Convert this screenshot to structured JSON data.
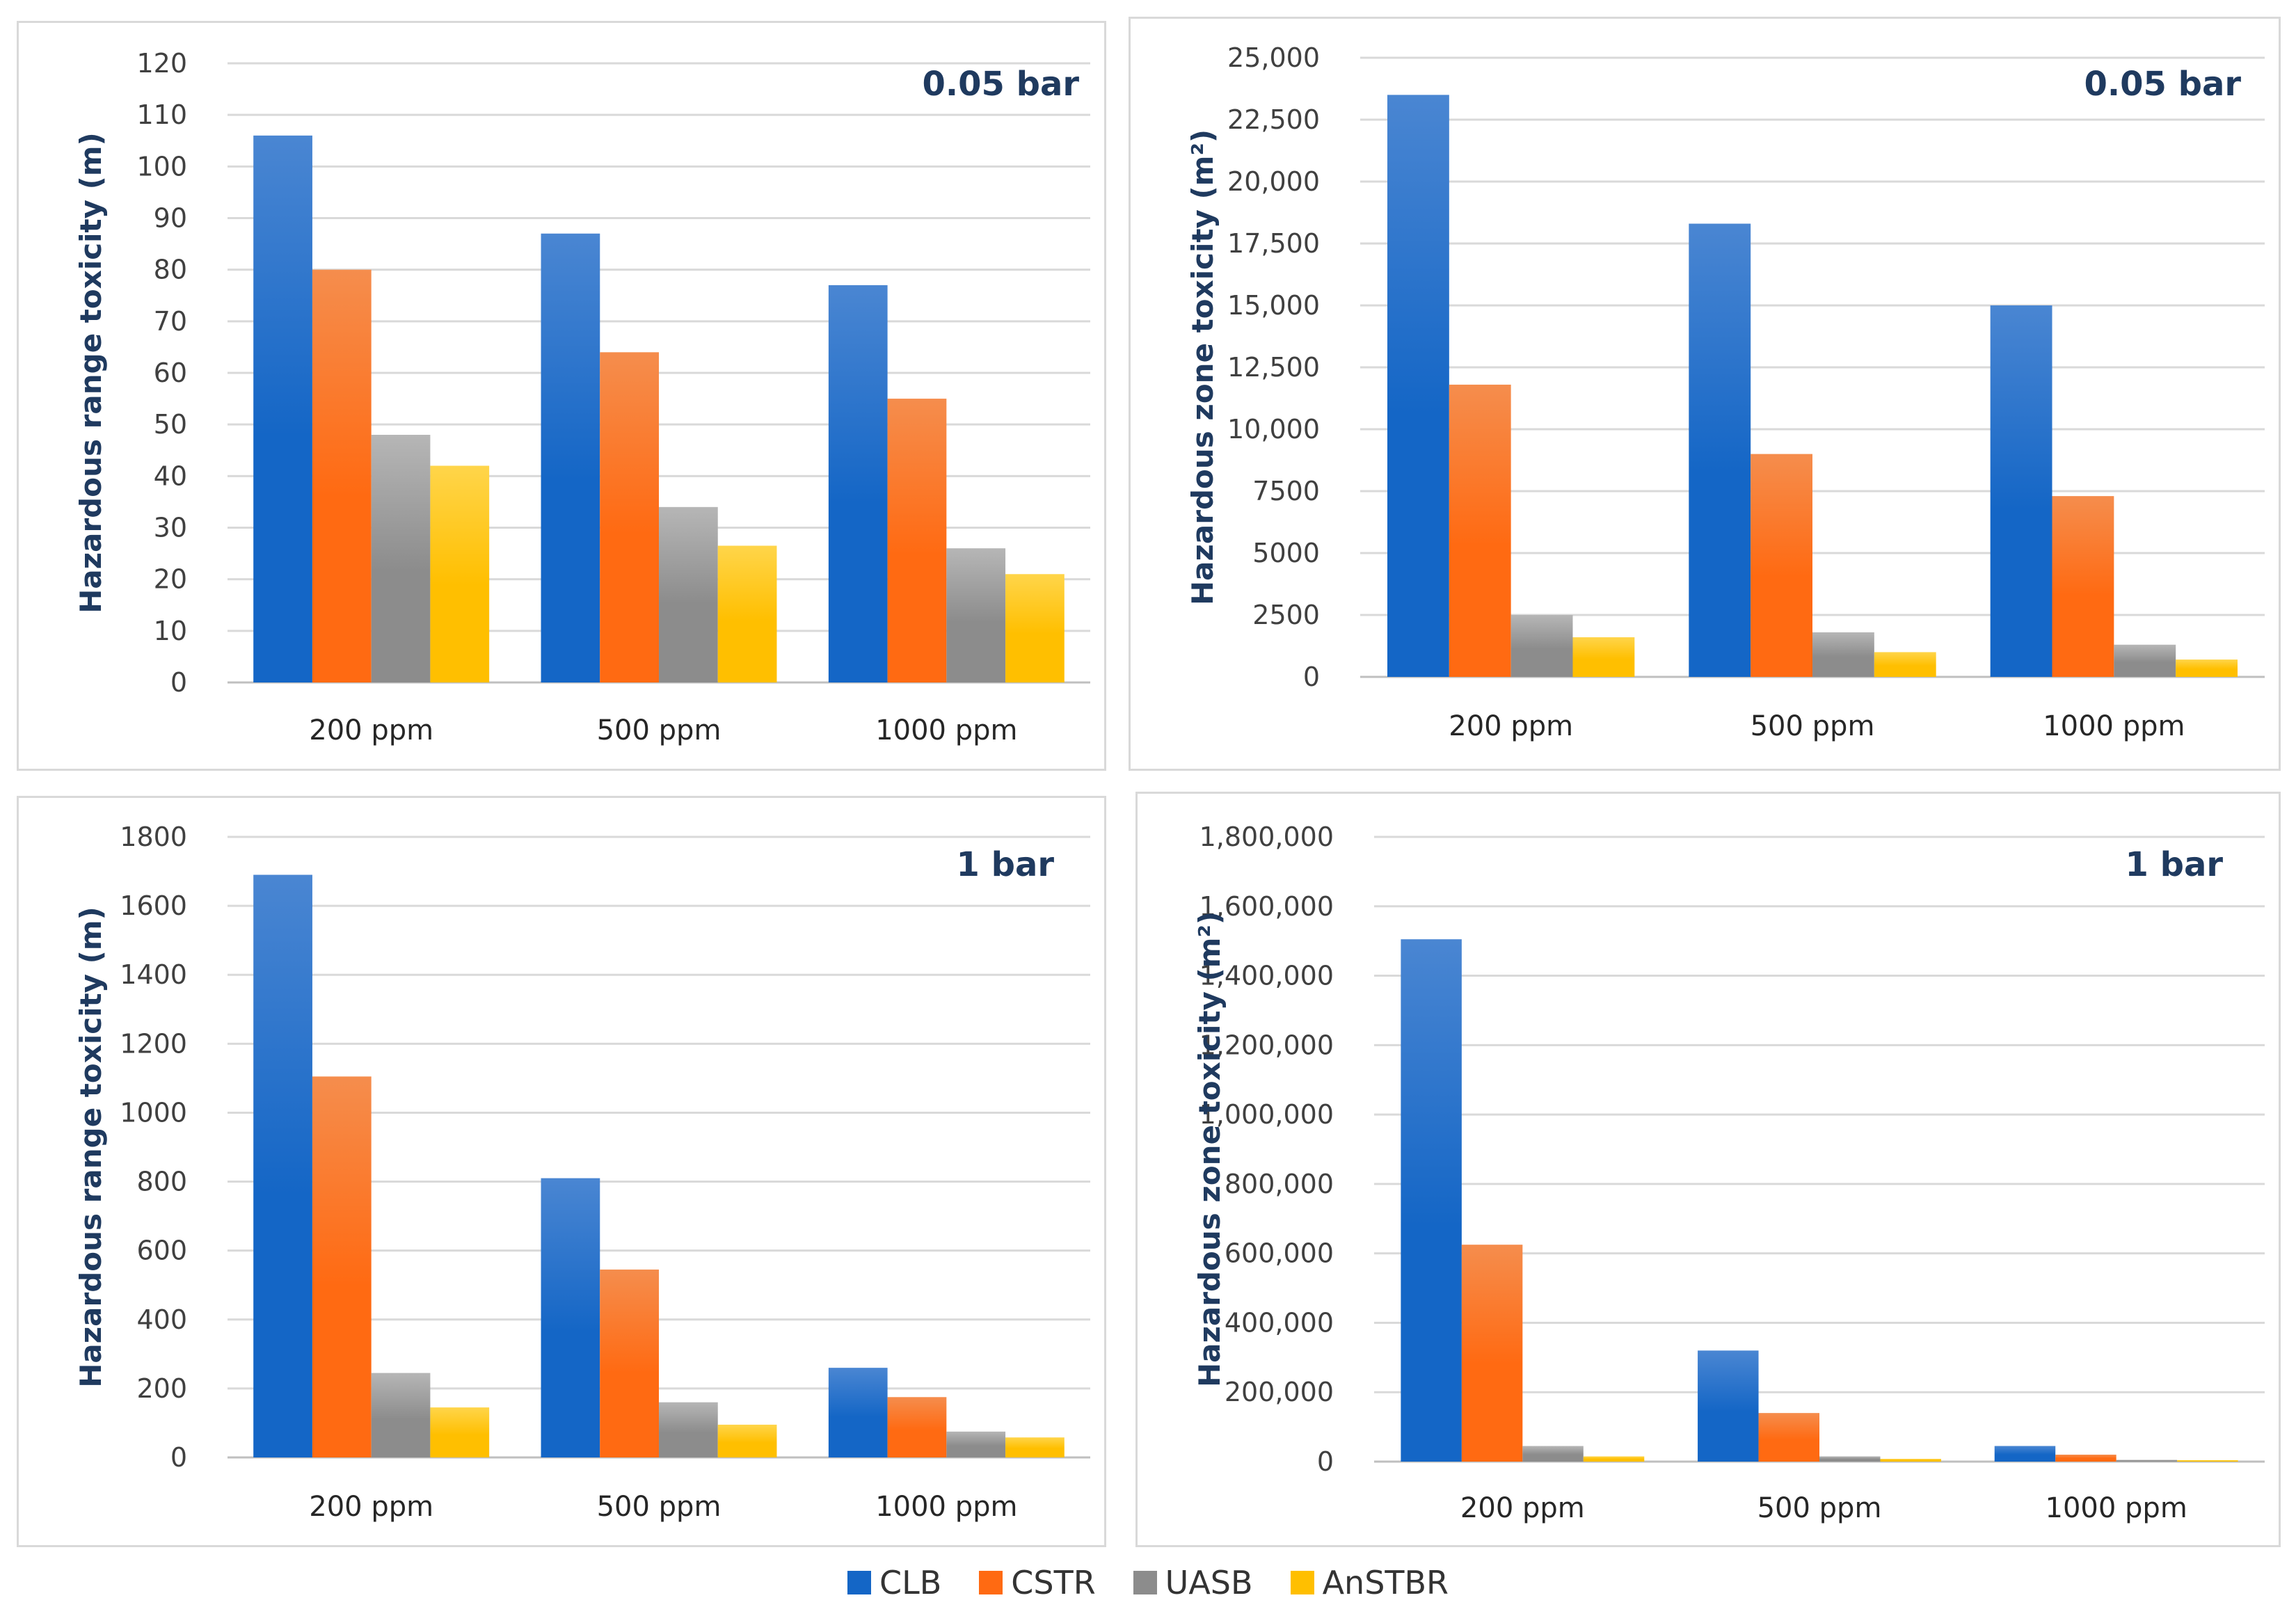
{
  "legend": [
    {
      "name": "CLB",
      "color": "#1466c6",
      "light": "#4a86d2"
    },
    {
      "name": "CSTR",
      "color": "#ff6a12",
      "light": "#f58d4d"
    },
    {
      "name": "UASB",
      "color": "#8c8c8c",
      "light": "#b6b6b6"
    },
    {
      "name": "AnSTBR",
      "color": "#ffbf00",
      "light": "#ffd54a"
    }
  ],
  "chart_data": [
    {
      "type": "bar",
      "title": "0.05 bar",
      "ylabel": "Hazardous range toxicity (m)",
      "ylim": [
        0,
        120
      ],
      "yticks": [
        0,
        10,
        20,
        30,
        40,
        50,
        60,
        70,
        80,
        90,
        100,
        110,
        120
      ],
      "ytick_labels": [
        "0",
        "10",
        "20",
        "30",
        "40",
        "50",
        "60",
        "70",
        "80",
        "90",
        "100",
        "110",
        "120"
      ],
      "categories": [
        "200 ppm",
        "500 ppm",
        "1000 ppm"
      ],
      "series": [
        {
          "name": "CLB",
          "values": [
            106,
            87,
            77
          ]
        },
        {
          "name": "CSTR",
          "values": [
            80,
            64,
            55
          ]
        },
        {
          "name": "UASB",
          "values": [
            48,
            34,
            26
          ]
        },
        {
          "name": "AnSTBR",
          "values": [
            42,
            26.5,
            21
          ]
        }
      ]
    },
    {
      "type": "bar",
      "title": "0.05 bar",
      "ylabel": "Hazardous zone toxicity (m²)",
      "ylim": [
        0,
        25000
      ],
      "yticks": [
        0,
        2500,
        5000,
        7500,
        10000,
        12500,
        15000,
        17500,
        20000,
        22500,
        25000
      ],
      "ytick_labels": [
        "0",
        "2500",
        "5000",
        "7500",
        "10,000",
        "12,500",
        "15,000",
        "17,500",
        "20,000",
        "22,500",
        "25,000"
      ],
      "categories": [
        "200 ppm",
        "500 ppm",
        "1000 ppm"
      ],
      "series": [
        {
          "name": "CLB",
          "values": [
            23500,
            18300,
            15000
          ]
        },
        {
          "name": "CSTR",
          "values": [
            11800,
            9000,
            7300
          ]
        },
        {
          "name": "UASB",
          "values": [
            2500,
            1800,
            1300
          ]
        },
        {
          "name": "AnSTBR",
          "values": [
            1600,
            1000,
            700
          ]
        }
      ]
    },
    {
      "type": "bar",
      "title": "1 bar",
      "ylabel": "Hazardous range toxicity (m)",
      "ylim": [
        0,
        1800
      ],
      "yticks": [
        0,
        200,
        400,
        600,
        800,
        1000,
        1200,
        1400,
        1600,
        1800
      ],
      "ytick_labels": [
        "0",
        "200",
        "400",
        "600",
        "800",
        "1000",
        "1200",
        "1400",
        "1600",
        "1800"
      ],
      "categories": [
        "200 ppm",
        "500 ppm",
        "1000 ppm"
      ],
      "series": [
        {
          "name": "CLB",
          "values": [
            1690,
            810,
            260
          ]
        },
        {
          "name": "CSTR",
          "values": [
            1105,
            545,
            175
          ]
        },
        {
          "name": "UASB",
          "values": [
            245,
            160,
            75
          ]
        },
        {
          "name": "AnSTBR",
          "values": [
            145,
            95,
            58
          ]
        }
      ]
    },
    {
      "type": "bar",
      "title": "1 bar",
      "ylabel": "Hazardous zone toxicity (m²)",
      "ylim": [
        0,
        1800000
      ],
      "yticks": [
        0,
        200000,
        400000,
        600000,
        800000,
        1000000,
        1200000,
        1400000,
        1600000,
        1800000
      ],
      "ytick_labels": [
        "0",
        "200,000",
        "400,000",
        "600,000",
        "800,000",
        "1,000,000",
        "1,200,000",
        "1,400,000",
        "1,600,000",
        "1,800,000"
      ],
      "categories": [
        "200 ppm",
        "500 ppm",
        "1000 ppm"
      ],
      "series": [
        {
          "name": "CLB",
          "values": [
            1505000,
            320000,
            45000
          ]
        },
        {
          "name": "CSTR",
          "values": [
            625000,
            140000,
            20000
          ]
        },
        {
          "name": "UASB",
          "values": [
            45000,
            15000,
            5000
          ]
        },
        {
          "name": "AnSTBR",
          "values": [
            15000,
            8000,
            4000
          ]
        }
      ]
    }
  ]
}
